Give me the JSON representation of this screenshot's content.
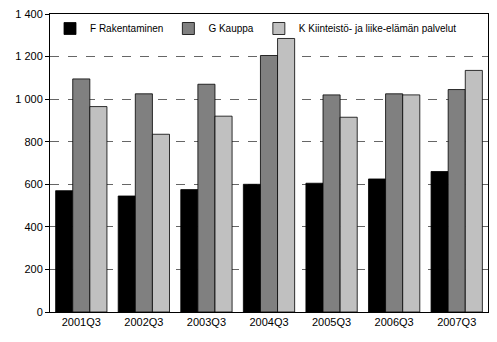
{
  "chart_data": {
    "type": "bar",
    "categories": [
      "2001Q3",
      "2002Q3",
      "2003Q3",
      "2004Q3",
      "2005Q3",
      "2006Q3",
      "2007Q3"
    ],
    "series": [
      {
        "name": "F Rakentaminen",
        "color": "#000000",
        "values": [
          570,
          545,
          575,
          600,
          605,
          625,
          660
        ]
      },
      {
        "name": "G Kauppa",
        "color": "#808080",
        "values": [
          1095,
          1025,
          1070,
          1205,
          1020,
          1025,
          1045
        ]
      },
      {
        "name": "K Kiinteistö- ja liike-elämän palvelut",
        "color": "#c0c0c0",
        "values": [
          965,
          835,
          920,
          1285,
          915,
          1020,
          1135
        ]
      }
    ],
    "ylim": [
      0,
      1400
    ],
    "yticks": [
      0,
      200,
      400,
      600,
      800,
      {
        "value": 1000,
        "label": "1 000"
      },
      {
        "value": 1200,
        "label": "1 200"
      },
      {
        "value": 1400,
        "label": "1 400"
      }
    ],
    "grid": true,
    "legend": "top left"
  }
}
